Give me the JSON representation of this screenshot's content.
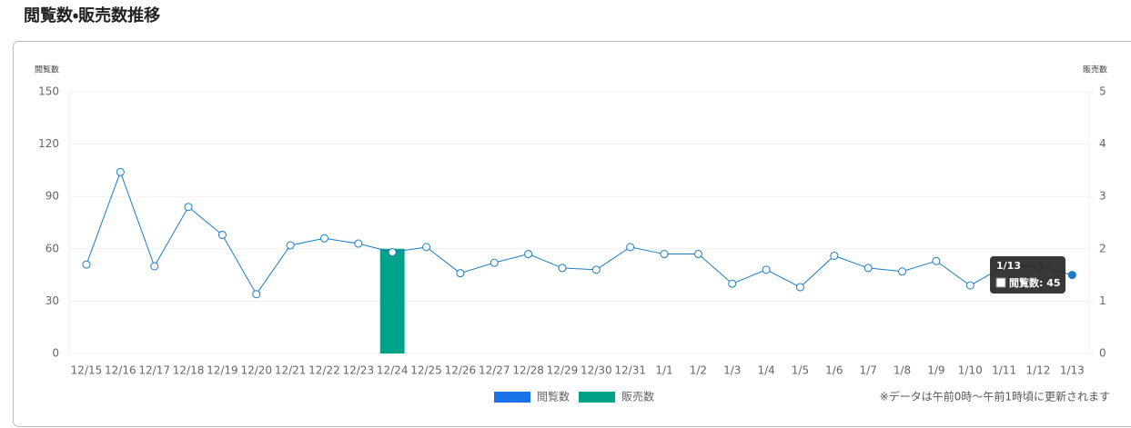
{
  "chart_data": {
    "type": "combo",
    "title": "閲覧数・販売数推移",
    "y_label": "閲覧数",
    "y2_label": "販売数",
    "categories": [
      "12/15",
      "12/16",
      "12/17",
      "12/18",
      "12/19",
      "12/20",
      "12/21",
      "12/22",
      "12/23",
      "12/24",
      "12/25",
      "12/26",
      "12/27",
      "12/28",
      "12/29",
      "12/30",
      "12/31",
      "1/1",
      "1/2",
      "1/3",
      "1/4",
      "1/5",
      "1/6",
      "1/7",
      "1/8",
      "1/9",
      "1/10",
      "1/11",
      "1/12",
      "1/13"
    ],
    "series": [
      {
        "name": "閲覧数",
        "type": "line",
        "axis": "y",
        "color": "#1a7bc4",
        "values": [
          51,
          104,
          50,
          84,
          68,
          34,
          62,
          66,
          63,
          58,
          61,
          46,
          52,
          57,
          49,
          48,
          61,
          57,
          57,
          40,
          48,
          38,
          56,
          49,
          47,
          53,
          39,
          50,
          50,
          45
        ]
      },
      {
        "name": "販売数",
        "type": "bar",
        "axis": "y2",
        "color": "#00a38a",
        "values": [
          0,
          0,
          0,
          0,
          0,
          0,
          0,
          0,
          0,
          2,
          0,
          0,
          0,
          0,
          0,
          0,
          0,
          0,
          0,
          0,
          0,
          0,
          0,
          0,
          0,
          0,
          0,
          0,
          0,
          0
        ]
      }
    ],
    "ylim": [
      0,
      150
    ],
    "yticks": [
      0,
      30,
      60,
      90,
      120,
      150
    ],
    "y2lim": [
      0,
      5
    ],
    "y2ticks": [
      0,
      1,
      2,
      3,
      4,
      5
    ],
    "grid": true,
    "legend_colors": [
      "#1a73e8",
      "#00a38a"
    ],
    "legend": "bottom",
    "note": "※データは午前0時〜午前1時頃に更新されます",
    "tooltip": {
      "title": "1/13",
      "text": "閲覧数: 45"
    }
  }
}
